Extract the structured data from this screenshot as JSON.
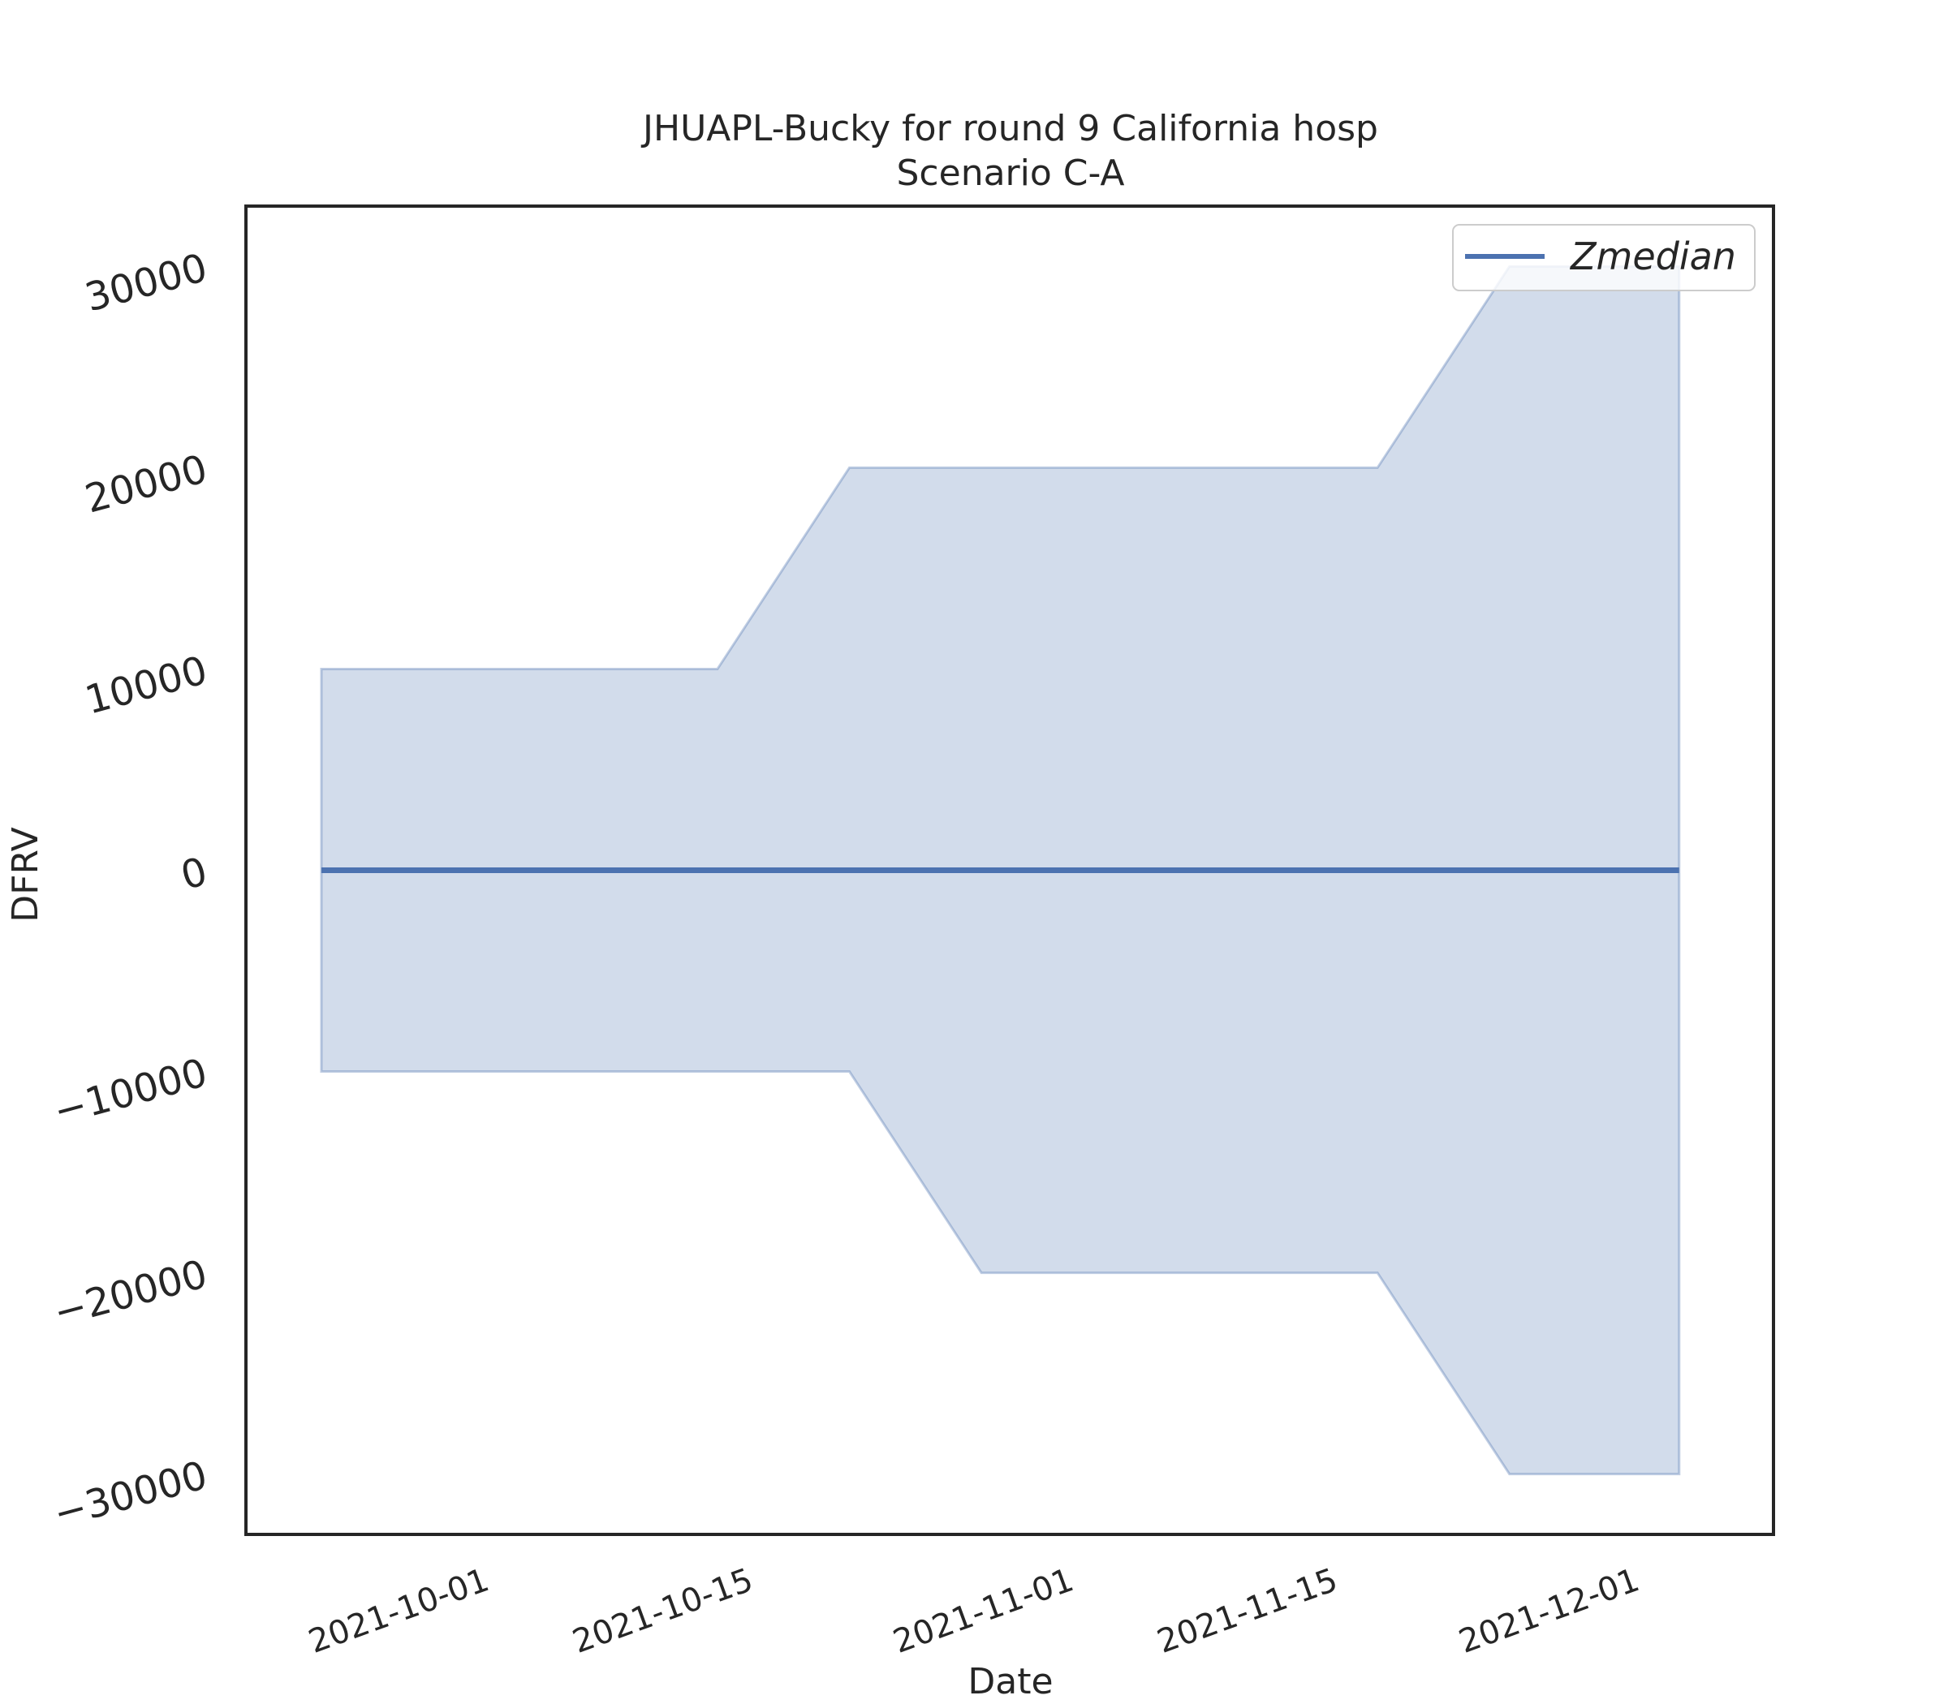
{
  "chart_data": {
    "type": "area",
    "title": "JHUAPL-Bucky for round 9 California hosp",
    "subtitle": "Scenario C-A",
    "xlabel": "Date",
    "ylabel": "DFRV",
    "x_ticks": [
      "2021-10-01",
      "2021-10-15",
      "2021-11-01",
      "2021-11-15",
      "2021-12-01"
    ],
    "y_ticks": [
      -30000,
      -20000,
      -10000,
      0,
      10000,
      20000,
      30000
    ],
    "x_range": [
      "2021-09-18",
      "2021-12-08"
    ],
    "ylim": [
      -33000,
      33000
    ],
    "legend": {
      "position": "upper-right"
    },
    "grid": false,
    "series": [
      {
        "name": "Zmedian",
        "color": "#4c72b0",
        "x": [
          "2021-09-22",
          "2021-12-03"
        ],
        "y": [
          0,
          0
        ]
      }
    ],
    "band": {
      "color": "#4c72b0",
      "upper": {
        "x": [
          "2021-09-22",
          "2021-10-13",
          "2021-10-20",
          "2021-11-17",
          "2021-11-24",
          "2021-12-03"
        ],
        "y": [
          10000,
          10000,
          20000,
          20000,
          30000,
          30000
        ]
      },
      "lower": {
        "x": [
          "2021-09-22",
          "2021-10-20",
          "2021-10-27",
          "2021-11-17",
          "2021-11-24",
          "2021-12-03"
        ],
        "y": [
          -10000,
          -10000,
          -20000,
          -20000,
          -30000,
          -30000
        ]
      }
    }
  }
}
